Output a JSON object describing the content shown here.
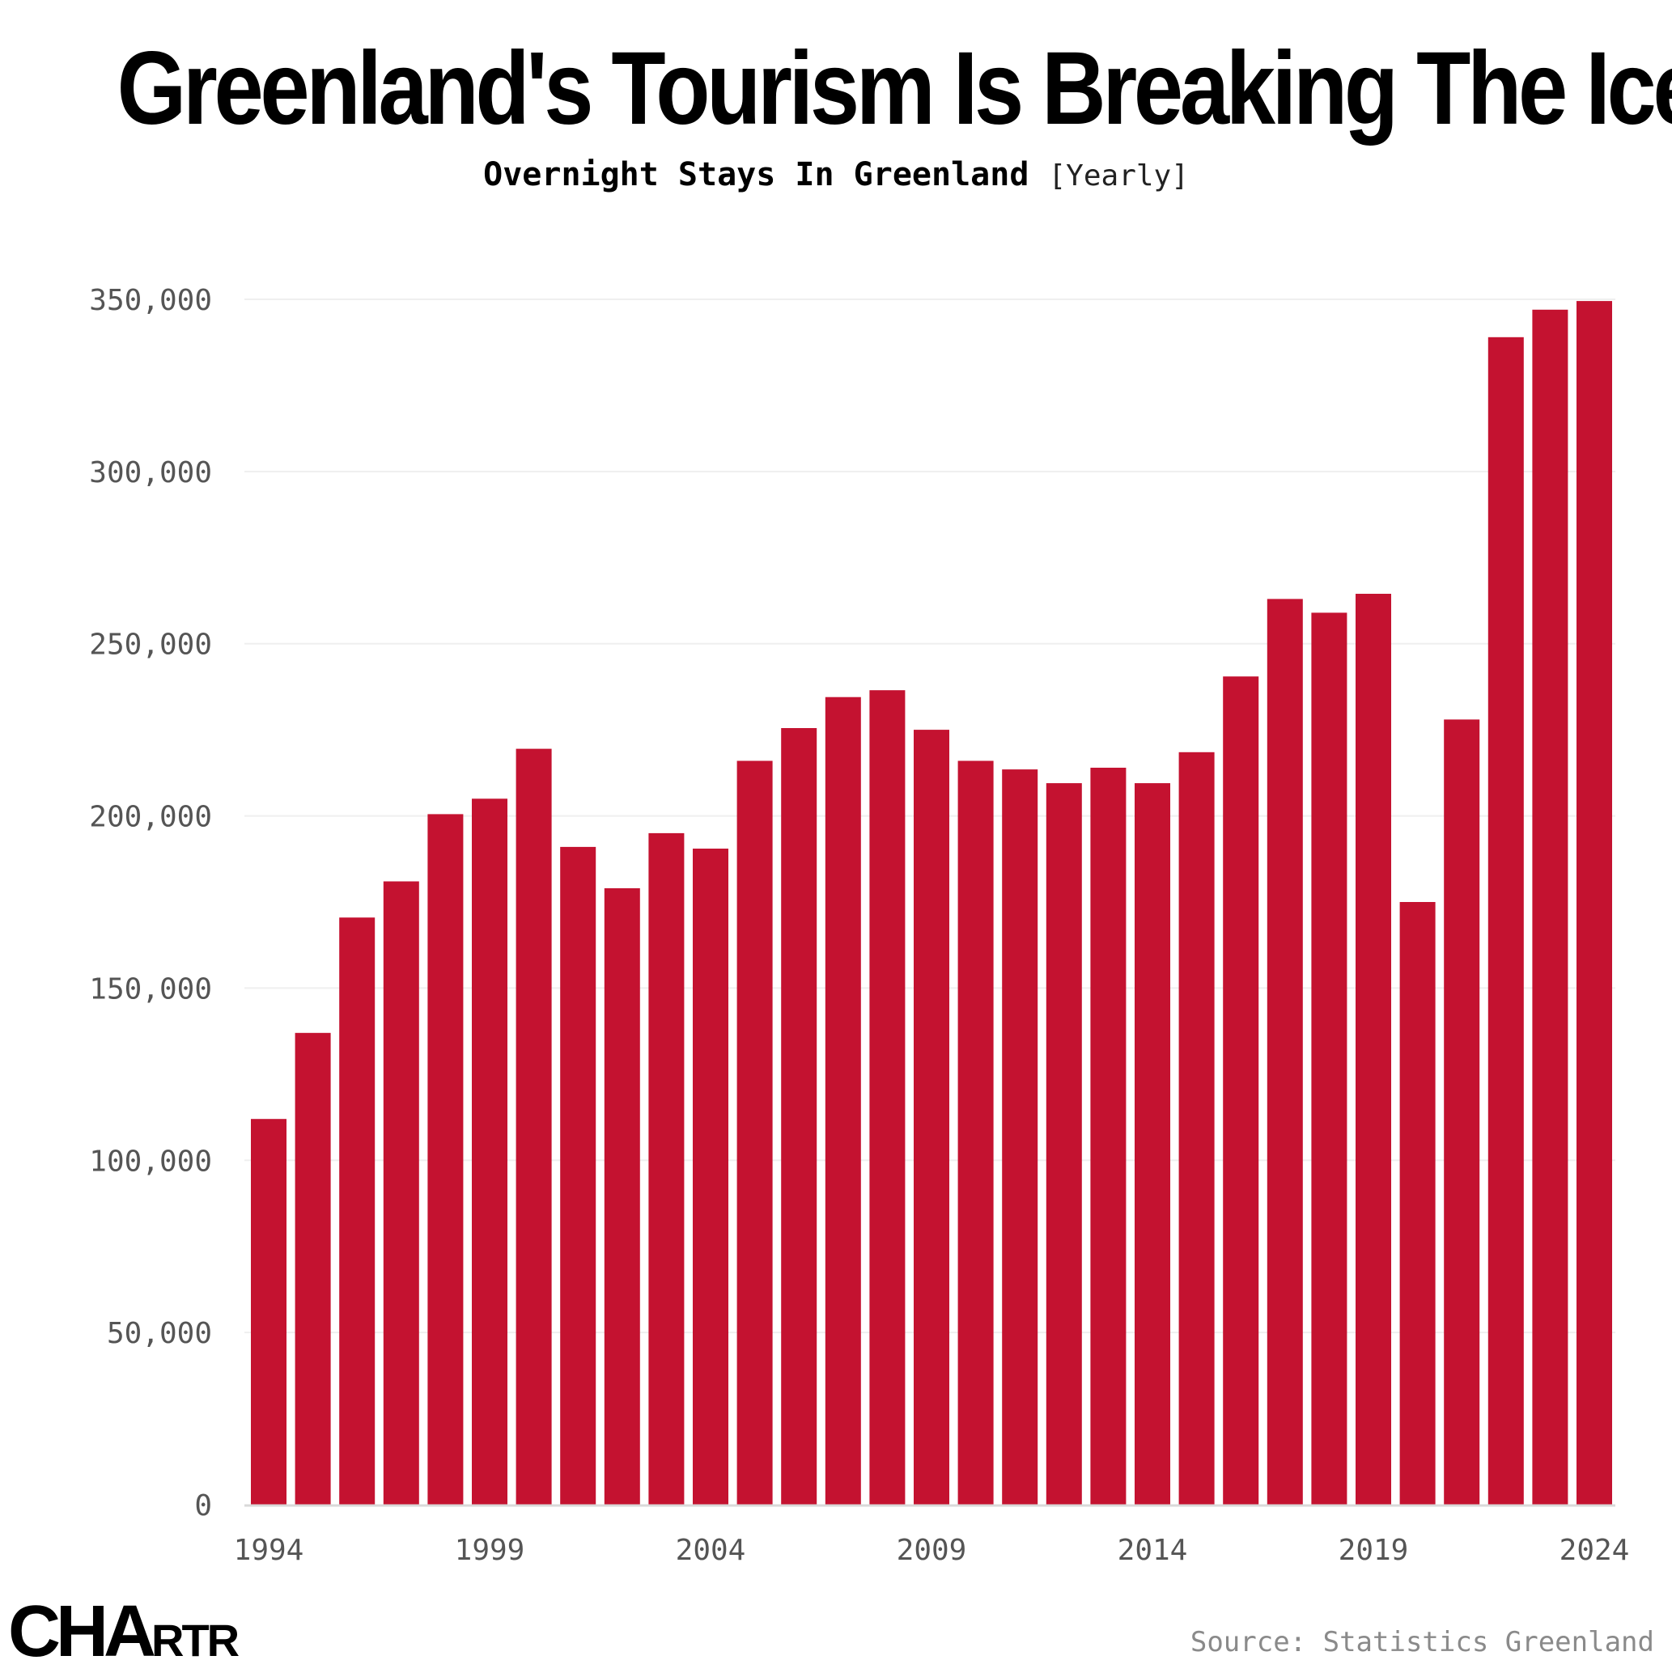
{
  "header": {
    "title": "Greenland's Tourism Is Breaking The Ice",
    "subtitle": "Overnight Stays In Greenland",
    "subtitle_unit": "[Yearly]"
  },
  "footer": {
    "logo_main": "CHA",
    "logo_small": "RTR",
    "source": "Source: Statistics Greenland"
  },
  "colors": {
    "bar": "#C41230",
    "grid": "#EFEFEF",
    "axis": "#D9D9D9",
    "tick_text": "#555555"
  },
  "chart_data": {
    "type": "bar",
    "title": "Greenland's Tourism Is Breaking The Ice",
    "subtitle": "Overnight Stays In Greenland [Yearly]",
    "xlabel": "",
    "ylabel": "",
    "ylim": [
      0,
      350000
    ],
    "yticks": [
      0,
      50000,
      100000,
      150000,
      200000,
      250000,
      300000,
      350000
    ],
    "ytick_labels": [
      "0",
      "50,000",
      "100,000",
      "150,000",
      "200,000",
      "250,000",
      "300,000",
      "350,000"
    ],
    "xtick_labels": [
      "1994",
      "1999",
      "2004",
      "2009",
      "2014",
      "2019",
      "2024"
    ],
    "grid": true,
    "legend": "none",
    "categories": [
      "1994",
      "1995",
      "1996",
      "1997",
      "1998",
      "1999",
      "2000",
      "2001",
      "2002",
      "2003",
      "2004",
      "2005",
      "2006",
      "2007",
      "2008",
      "2009",
      "2010",
      "2011",
      "2012",
      "2013",
      "2014",
      "2015",
      "2016",
      "2017",
      "2018",
      "2019",
      "2020",
      "2021",
      "2022",
      "2023",
      "2024"
    ],
    "values": [
      112000,
      137000,
      170500,
      181000,
      200500,
      205000,
      219500,
      191000,
      179000,
      195000,
      190500,
      216000,
      225500,
      234500,
      236500,
      225000,
      216000,
      213500,
      209500,
      214000,
      209500,
      218500,
      240500,
      263000,
      259000,
      264500,
      175000,
      228000,
      339000,
      347000,
      349500
    ]
  }
}
